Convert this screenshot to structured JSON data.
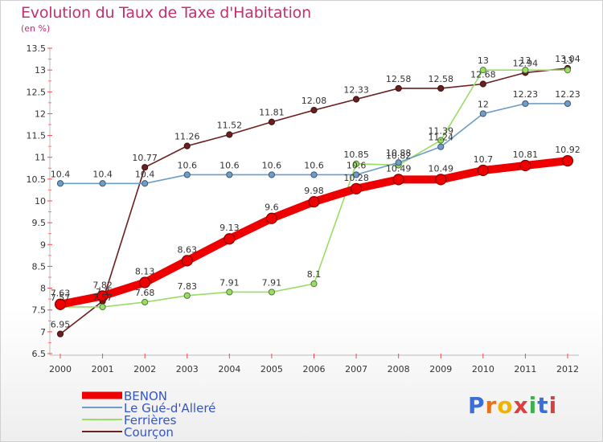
{
  "header": {
    "title": "Evolution du Taux de Taxe d'Habitation",
    "subtitle": "(en %)"
  },
  "logo": {
    "text": "Proxiti"
  },
  "chart_data": {
    "type": "line",
    "x": [
      "2000",
      "2001",
      "2002",
      "2003",
      "2004",
      "2005",
      "2006",
      "2007",
      "2008",
      "2009",
      "2010",
      "2011",
      "2012"
    ],
    "ylim": [
      6.5,
      13.5
    ],
    "yticks": [
      "6.5",
      "7",
      "7.5",
      "8",
      "8.5",
      "9",
      "9.5",
      "10",
      "10.5",
      "11",
      "11.5",
      "12",
      "12.5",
      "13",
      "13.5"
    ],
    "grid": false,
    "legend": "bottom-left",
    "series": [
      {
        "name": "Courçon",
        "color": "#6b1f1f",
        "values": [
          6.95,
          7.7,
          10.77,
          11.26,
          11.52,
          11.81,
          12.08,
          12.33,
          12.58,
          12.58,
          12.68,
          12.94,
          13.04
        ],
        "labels": [
          "6.95",
          "7.7",
          "10.77",
          "11.26",
          "11.52",
          "11.81",
          "12.08",
          "12.33",
          "12.58",
          "12.58",
          "12.68",
          "12.94",
          "13.04"
        ]
      },
      {
        "name": "Ferrières",
        "color": "#99dd66",
        "values": [
          7.57,
          7.57,
          7.68,
          7.83,
          7.91,
          7.91,
          8.1,
          10.85,
          10.82,
          11.39,
          13,
          13,
          13
        ],
        "labels": [
          "7.57",
          "7.57",
          "7.68",
          "7.83",
          "7.91",
          "7.91",
          "8.1",
          "10.85",
          "10.82",
          "11.39",
          "13",
          "13",
          "13"
        ]
      },
      {
        "name": "Le Gué-d'Alleré",
        "color": "#6e9ec8",
        "values": [
          10.4,
          10.4,
          10.4,
          10.6,
          10.6,
          10.6,
          10.6,
          10.6,
          10.88,
          11.24,
          12,
          12.23,
          12.23
        ],
        "labels": [
          "10.4",
          "10.4",
          "10.4",
          "10.6",
          "10.6",
          "10.6",
          "10.6",
          "10.6",
          "10.88",
          "11.24",
          "12",
          "12.23",
          "12.23"
        ]
      },
      {
        "name": "BENON",
        "color": "#ee0000",
        "values": [
          7.63,
          7.82,
          8.13,
          8.63,
          9.13,
          9.6,
          9.98,
          10.28,
          10.49,
          10.49,
          10.7,
          10.81,
          10.92
        ],
        "labels": [
          "7.63",
          "7.82",
          "8.13",
          "8.63",
          "9.13",
          "9.6",
          "9.98",
          "10.28",
          "10.49",
          "10.49",
          "10.7",
          "10.81",
          "10.92"
        ]
      }
    ],
    "legend_items": [
      {
        "name": "BENON",
        "color": "#ee0000",
        "thick": true
      },
      {
        "name": "Le Gué-d'Alleré",
        "color": "#6e9ec8",
        "thick": false
      },
      {
        "name": "Ferrières",
        "color": "#99dd66",
        "thick": false
      },
      {
        "name": "Courçon",
        "color": "#6b1f1f",
        "thick": false
      }
    ]
  }
}
